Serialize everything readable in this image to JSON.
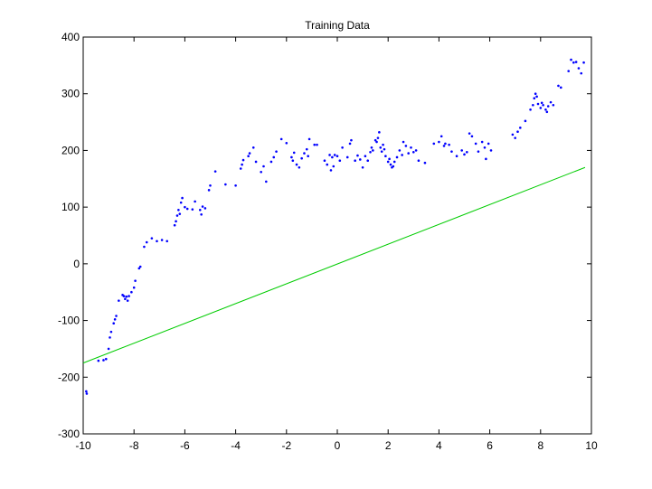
{
  "chart_data": {
    "type": "scatter",
    "title": "Training Data",
    "xlabel": "",
    "ylabel": "",
    "xlim": [
      -10,
      10
    ],
    "ylim": [
      -300,
      400
    ],
    "x_ticks": [
      "-10",
      "-8",
      "-6",
      "-4",
      "-2",
      "0",
      "2",
      "4",
      "6",
      "8",
      "10"
    ],
    "y_ticks": [
      "400",
      "300",
      "200",
      "100",
      "0",
      "-100",
      "-200",
      "-300"
    ],
    "grid": false,
    "colors": {
      "points": "#0000ff",
      "fit_line": "#00cc00",
      "axes": "#000000"
    },
    "series": [
      {
        "type": "scatter",
        "points": [
          [
            -9.88,
            -225
          ],
          [
            -9.86,
            -229
          ],
          [
            -9.4,
            -171
          ],
          [
            -9.2,
            -170
          ],
          [
            -9.1,
            -168
          ],
          [
            -9.0,
            -150
          ],
          [
            -8.95,
            -130
          ],
          [
            -8.9,
            -120
          ],
          [
            -8.8,
            -105
          ],
          [
            -8.75,
            -98
          ],
          [
            -8.7,
            -92
          ],
          [
            -8.6,
            -65
          ],
          [
            -8.45,
            -55
          ],
          [
            -8.4,
            -57
          ],
          [
            -8.35,
            -62
          ],
          [
            -8.3,
            -58
          ],
          [
            -8.25,
            -65
          ],
          [
            -8.2,
            -57
          ],
          [
            -8.1,
            -50
          ],
          [
            -8.0,
            -42
          ],
          [
            -7.95,
            -30
          ],
          [
            -7.8,
            -8
          ],
          [
            -7.75,
            -5
          ],
          [
            -7.6,
            30
          ],
          [
            -7.5,
            38
          ],
          [
            -7.3,
            45
          ],
          [
            -7.1,
            40
          ],
          [
            -6.9,
            42
          ],
          [
            -6.7,
            40
          ],
          [
            -6.4,
            68
          ],
          [
            -6.35,
            75
          ],
          [
            -6.3,
            85
          ],
          [
            -6.25,
            95
          ],
          [
            -6.2,
            88
          ],
          [
            -6.15,
            108
          ],
          [
            -6.1,
            116
          ],
          [
            -6.0,
            100
          ],
          [
            -5.9,
            97
          ],
          [
            -5.7,
            96
          ],
          [
            -5.6,
            110
          ],
          [
            -5.4,
            95
          ],
          [
            -5.35,
            87
          ],
          [
            -5.3,
            101
          ],
          [
            -5.2,
            98
          ],
          [
            -5.05,
            130
          ],
          [
            -5.0,
            138
          ],
          [
            -4.8,
            163
          ],
          [
            -4.4,
            140
          ],
          [
            -4.0,
            138
          ],
          [
            -3.8,
            168
          ],
          [
            -3.75,
            175
          ],
          [
            -3.7,
            183
          ],
          [
            -3.5,
            190
          ],
          [
            -3.45,
            195
          ],
          [
            -3.3,
            205
          ],
          [
            -3.2,
            180
          ],
          [
            -3.0,
            162
          ],
          [
            -2.9,
            172
          ],
          [
            -2.8,
            145
          ],
          [
            -2.6,
            180
          ],
          [
            -2.5,
            188
          ],
          [
            -2.4,
            198
          ],
          [
            -2.2,
            220
          ],
          [
            -2.0,
            213
          ],
          [
            -1.8,
            188
          ],
          [
            -1.75,
            182
          ],
          [
            -1.7,
            196
          ],
          [
            -1.6,
            175
          ],
          [
            -1.5,
            170
          ],
          [
            -1.4,
            186
          ],
          [
            -1.3,
            195
          ],
          [
            -1.2,
            202
          ],
          [
            -1.15,
            190
          ],
          [
            -1.1,
            220
          ],
          [
            -0.9,
            210
          ],
          [
            -0.8,
            210
          ],
          [
            -0.5,
            182
          ],
          [
            -0.4,
            175
          ],
          [
            -0.3,
            192
          ],
          [
            -0.25,
            165
          ],
          [
            -0.2,
            188
          ],
          [
            -0.15,
            172
          ],
          [
            -0.1,
            192
          ],
          [
            0.0,
            190
          ],
          [
            0.1,
            182
          ],
          [
            0.2,
            205
          ],
          [
            0.4,
            188
          ],
          [
            0.5,
            212
          ],
          [
            0.55,
            218
          ],
          [
            0.7,
            182
          ],
          [
            0.8,
            191
          ],
          [
            0.9,
            184
          ],
          [
            1.0,
            170
          ],
          [
            1.1,
            190
          ],
          [
            1.2,
            182
          ],
          [
            1.3,
            197
          ],
          [
            1.35,
            205
          ],
          [
            1.4,
            200
          ],
          [
            1.5,
            218
          ],
          [
            1.55,
            215
          ],
          [
            1.6,
            222
          ],
          [
            1.65,
            232
          ],
          [
            1.7,
            205
          ],
          [
            1.75,
            198
          ],
          [
            1.8,
            210
          ],
          [
            1.85,
            202
          ],
          [
            1.9,
            190
          ],
          [
            2.0,
            180
          ],
          [
            2.05,
            185
          ],
          [
            2.1,
            175
          ],
          [
            2.15,
            170
          ],
          [
            2.2,
            172
          ],
          [
            2.25,
            180
          ],
          [
            2.35,
            188
          ],
          [
            2.45,
            200
          ],
          [
            2.55,
            192
          ],
          [
            2.6,
            215
          ],
          [
            2.7,
            208
          ],
          [
            2.8,
            195
          ],
          [
            2.9,
            205
          ],
          [
            3.0,
            197
          ],
          [
            3.1,
            200
          ],
          [
            3.2,
            182
          ],
          [
            3.45,
            178
          ],
          [
            3.8,
            212
          ],
          [
            4.0,
            215
          ],
          [
            4.1,
            225
          ],
          [
            4.2,
            208
          ],
          [
            4.25,
            212
          ],
          [
            4.4,
            210
          ],
          [
            4.5,
            198
          ],
          [
            4.7,
            190
          ],
          [
            4.9,
            200
          ],
          [
            5.0,
            193
          ],
          [
            5.1,
            197
          ],
          [
            5.2,
            230
          ],
          [
            5.3,
            225
          ],
          [
            5.45,
            212
          ],
          [
            5.55,
            198
          ],
          [
            5.7,
            215
          ],
          [
            5.8,
            205
          ],
          [
            5.85,
            185
          ],
          [
            5.95,
            212
          ],
          [
            6.05,
            200
          ],
          [
            6.9,
            228
          ],
          [
            7.0,
            222
          ],
          [
            7.1,
            233
          ],
          [
            7.2,
            240
          ],
          [
            7.4,
            252
          ],
          [
            7.6,
            272
          ],
          [
            7.7,
            280
          ],
          [
            7.75,
            292
          ],
          [
            7.8,
            300
          ],
          [
            7.85,
            295
          ],
          [
            7.9,
            282
          ],
          [
            8.0,
            275
          ],
          [
            8.05,
            284
          ],
          [
            8.1,
            280
          ],
          [
            8.2,
            272
          ],
          [
            8.25,
            268
          ],
          [
            8.3,
            278
          ],
          [
            8.4,
            285
          ],
          [
            8.5,
            280
          ],
          [
            8.7,
            314
          ],
          [
            8.8,
            311
          ],
          [
            9.1,
            340
          ],
          [
            9.2,
            360
          ],
          [
            9.3,
            355
          ],
          [
            9.4,
            356
          ],
          [
            9.5,
            345
          ],
          [
            9.6,
            336
          ],
          [
            9.7,
            355
          ]
        ]
      },
      {
        "type": "line",
        "points": [
          [
            -10,
            -175
          ],
          [
            9.75,
            170
          ]
        ]
      }
    ]
  }
}
